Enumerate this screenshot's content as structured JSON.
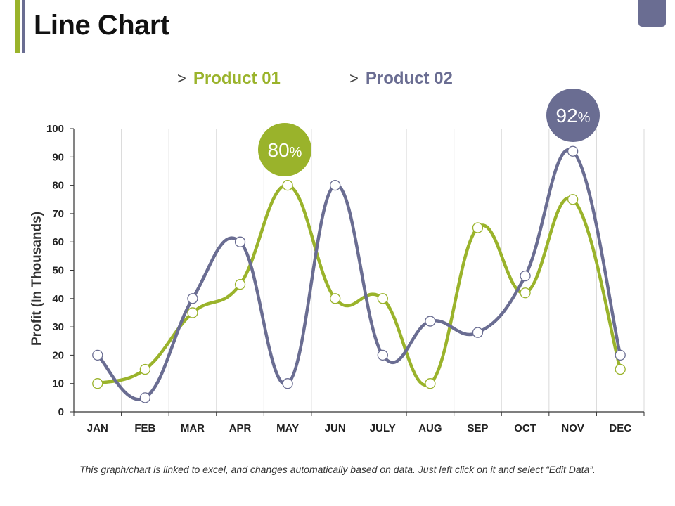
{
  "page": {
    "title": "Line Chart",
    "footnote": "This graph/chart is linked to excel, and changes automatically based on data. Just left click on it and select “Edit Data”."
  },
  "legend": {
    "chevron": ">",
    "items": [
      "Product 01",
      "Product 02"
    ]
  },
  "colors": {
    "product01": "#9ab32b",
    "product02": "#6a6d92",
    "grid": "#d9d9d9",
    "axis": "#333333"
  },
  "chart_data": {
    "type": "line",
    "title": "Line Chart",
    "xlabel": "",
    "ylabel": "Profit (In Thousands)",
    "ylim": [
      0,
      100
    ],
    "yticks": [
      0,
      10,
      20,
      30,
      40,
      50,
      60,
      70,
      80,
      90,
      100
    ],
    "categories": [
      "JAN",
      "FEB",
      "MAR",
      "APR",
      "MAY",
      "JUN",
      "JULY",
      "AUG",
      "SEP",
      "OCT",
      "NOV",
      "DEC"
    ],
    "series": [
      {
        "name": "Product 01",
        "color": "#9ab32b",
        "values": [
          10,
          15,
          35,
          45,
          80,
          40,
          40,
          10,
          65,
          42,
          75,
          15
        ]
      },
      {
        "name": "Product 02",
        "color": "#6a6d92",
        "values": [
          20,
          5,
          40,
          60,
          10,
          80,
          20,
          32,
          28,
          48,
          92,
          20
        ]
      }
    ],
    "annotations": [
      {
        "series": "Product 01",
        "category": "MAY",
        "value": 80,
        "number": "80",
        "unit": "%"
      },
      {
        "series": "Product 02",
        "category": "NOV",
        "value": 92,
        "number": "92",
        "unit": "%"
      }
    ],
    "grid": true
  }
}
